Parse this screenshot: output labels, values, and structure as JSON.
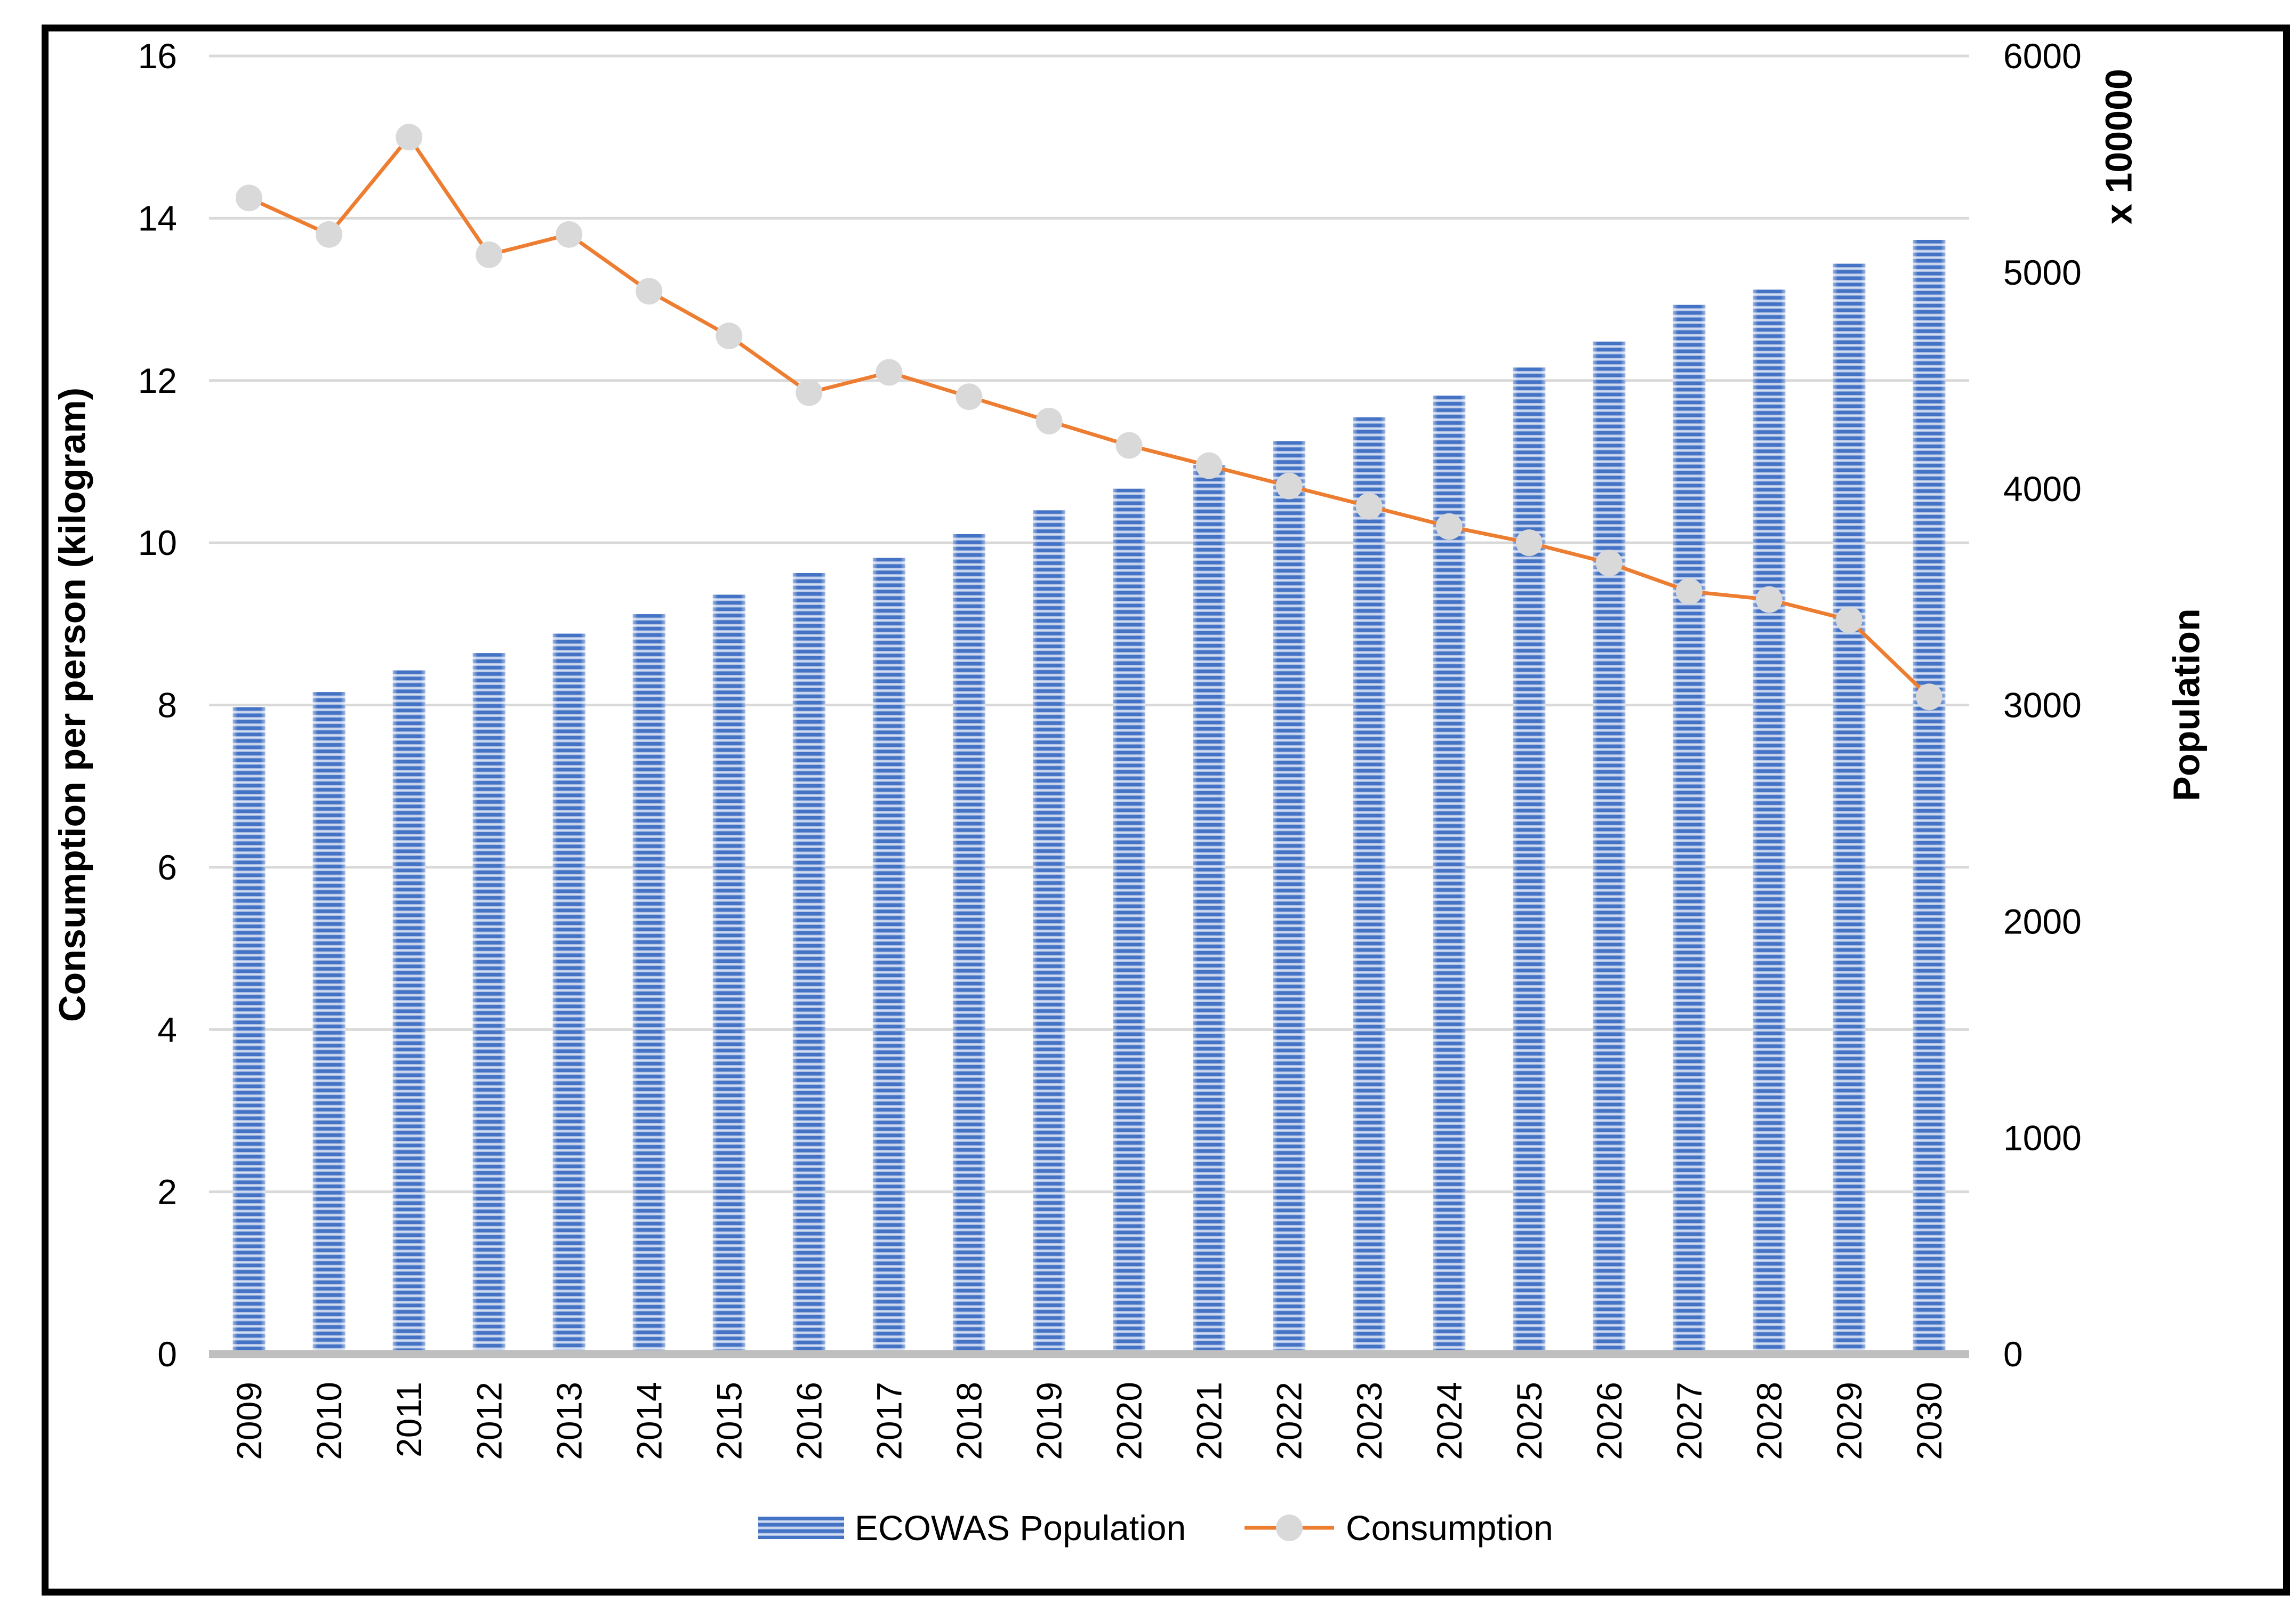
{
  "legend": {
    "items": [
      {
        "label": "ECOWAS Population",
        "marker": "striped-bar-swatch"
      },
      {
        "label": "Consumption",
        "marker": "line-with-dot"
      }
    ]
  },
  "chart_data": {
    "type": "bar+line",
    "categories": [
      "2009",
      "2010",
      "2011",
      "2012",
      "2013",
      "2014",
      "2015",
      "2016",
      "2017",
      "2018",
      "2019",
      "2020",
      "2021",
      "2022",
      "2023",
      "2024",
      "2025",
      "2026",
      "2027",
      "2028",
      "2029",
      "2030"
    ],
    "series": [
      {
        "name": "ECOWAS Population",
        "type": "bar",
        "axis": "right",
        "values": [
          2990,
          3060,
          3160,
          3240,
          3330,
          3420,
          3510,
          3610,
          3680,
          3790,
          3900,
          4000,
          4110,
          4220,
          4330,
          4430,
          4560,
          4680,
          4850,
          4920,
          5040,
          5150
        ]
      },
      {
        "name": "Consumption",
        "type": "line",
        "axis": "left",
        "values": [
          14.25,
          13.8,
          15.0,
          13.55,
          13.8,
          13.1,
          12.55,
          11.85,
          12.1,
          11.8,
          11.5,
          11.2,
          10.95,
          10.7,
          10.45,
          10.2,
          10.0,
          9.75,
          9.4,
          9.3,
          9.05,
          8.1
        ]
      }
    ],
    "left_axis": {
      "title": "Consumption per person (kilogram)",
      "min": 0,
      "max": 16,
      "step": 2,
      "ticks": [
        0,
        2,
        4,
        6,
        8,
        10,
        12,
        14,
        16
      ]
    },
    "right_axis": {
      "title": "Population",
      "multiplier": "x 100000",
      "min": 0,
      "max": 6000,
      "step": 1000,
      "ticks": [
        0,
        1000,
        2000,
        3000,
        4000,
        5000,
        6000
      ]
    },
    "grid": true,
    "legend_position": "bottom",
    "colors": {
      "bar_primary": "#4472C4",
      "bar_stripe_light_edge": "#9FB6E0",
      "bar_stripe_light_mid": "#DCE4F5",
      "line": "#ED7D31",
      "marker": "#D9D9D9",
      "gridline": "#D9D9D9",
      "baseline": "#BFBFBF",
      "border": "#000000",
      "text": "#000000"
    }
  }
}
